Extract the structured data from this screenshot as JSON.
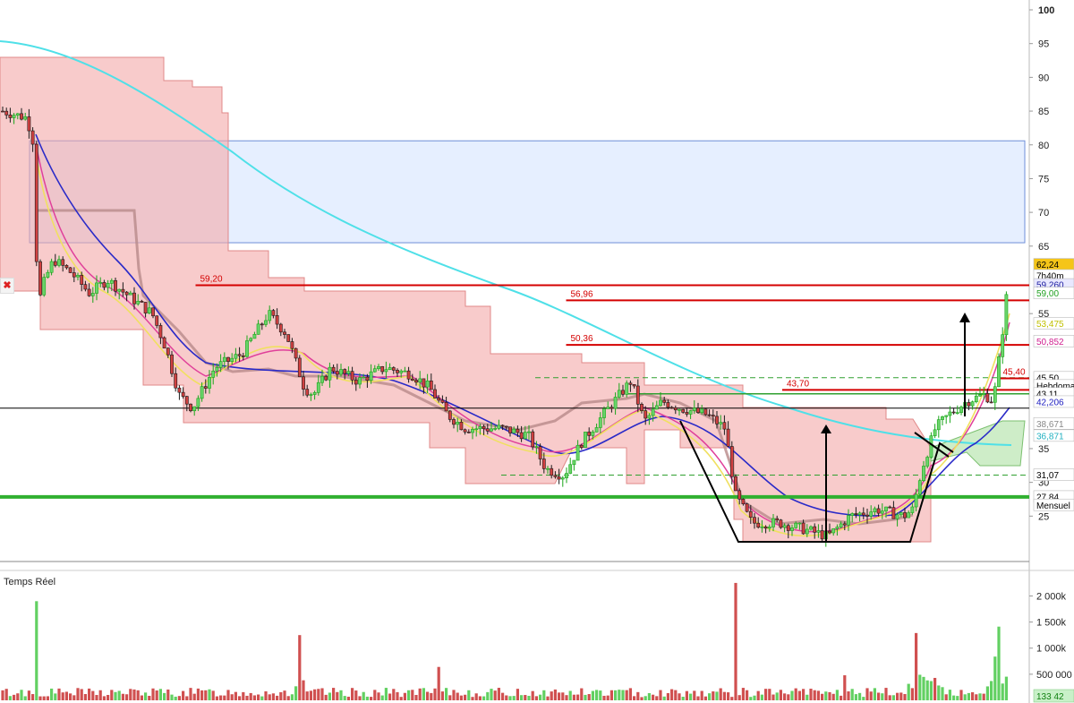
{
  "panel_label": "Temps Réel",
  "close_glyph": "✖",
  "chart_data": {
    "type": "candlestick",
    "price_axis": {
      "ylim": [
        20,
        100
      ],
      "ticks": [
        "100",
        "95",
        "90",
        "85",
        "80",
        "75",
        "70",
        "65",
        "55",
        "35",
        "30",
        "25"
      ]
    },
    "volume_axis": {
      "ylim": [
        0,
        2300000
      ],
      "ticks": [
        {
          "v": 2000000,
          "label": "2 000k"
        },
        {
          "v": 1500000,
          "label": "1 500k"
        },
        {
          "v": 1000000,
          "label": "1 000k"
        },
        {
          "v": 500000,
          "label": "500 000"
        }
      ]
    },
    "horizontal_levels": [
      {
        "value": 59.2,
        "label": "59,20",
        "color": "#d40000",
        "start": 0.19
      },
      {
        "value": 56.96,
        "label": "56,96",
        "color": "#d40000",
        "start": 0.55
      },
      {
        "value": 50.36,
        "label": "50,36",
        "color": "#d40000",
        "start": 0.55
      },
      {
        "value": 45.4,
        "label": "45,40",
        "color": "#d40000",
        "start": 0.97
      },
      {
        "value": 43.7,
        "label": "43,70",
        "color": "#d40000",
        "start": 0.76
      }
    ],
    "right_badges": [
      {
        "value": 62.24,
        "label": "62,24",
        "bg": "#f5c518",
        "fg": "#000"
      },
      {
        "value": 60.6,
        "label": "7h40m",
        "bg": "#ffffff",
        "fg": "#000"
      },
      {
        "value": 59.26,
        "label": "59,260",
        "bg": "#e8e8ff",
        "fg": "#2020a0"
      },
      {
        "value": 58.0,
        "label": "59,00",
        "bg": "#ffffff",
        "fg": "#20a020"
      },
      {
        "value": 53.475,
        "label": "53,475",
        "bg": "#ffffff",
        "fg": "#c0c000"
      },
      {
        "value": 50.852,
        "label": "50,852",
        "bg": "#ffffff",
        "fg": "#d02090"
      },
      {
        "value": 45.5,
        "label": "45,50",
        "bg": "#ffffff",
        "fg": "#000"
      },
      {
        "value": 44.3,
        "label": "Hebdomac",
        "bg": "#ffffff",
        "fg": "#000"
      },
      {
        "value": 43.11,
        "label": "43,11",
        "bg": "#ffffff",
        "fg": "#000"
      },
      {
        "value": 41.9,
        "label": "42,206",
        "bg": "#ffffff",
        "fg": "#2020c0"
      },
      {
        "value": 38.67,
        "label": "38,671",
        "bg": "#ffffff",
        "fg": "#888"
      },
      {
        "value": 36.871,
        "label": "36,871",
        "bg": "#ffffff",
        "fg": "#20b0c0"
      },
      {
        "value": 31.07,
        "label": "31,07",
        "bg": "#ffffff",
        "fg": "#000"
      },
      {
        "value": 27.84,
        "label": "27,84",
        "bg": "#ffffff",
        "fg": "#000"
      },
      {
        "value": 26.6,
        "label": "Mensuel",
        "bg": "#ffffff",
        "fg": "#000"
      }
    ],
    "volume_badge": {
      "label": "133 42",
      "bg": "#c8f0c8",
      "fg": "#108010"
    },
    "supports": [
      {
        "value": 27.84,
        "color": "#30b030"
      },
      {
        "value": 41.0,
        "color": "#000000"
      }
    ],
    "resistance_zone": [
      65.5,
      80.6
    ],
    "dashed_levels": [
      {
        "value": 45.5,
        "color": "#30a030"
      },
      {
        "value": 31.07,
        "color": "#30a030"
      }
    ]
  }
}
